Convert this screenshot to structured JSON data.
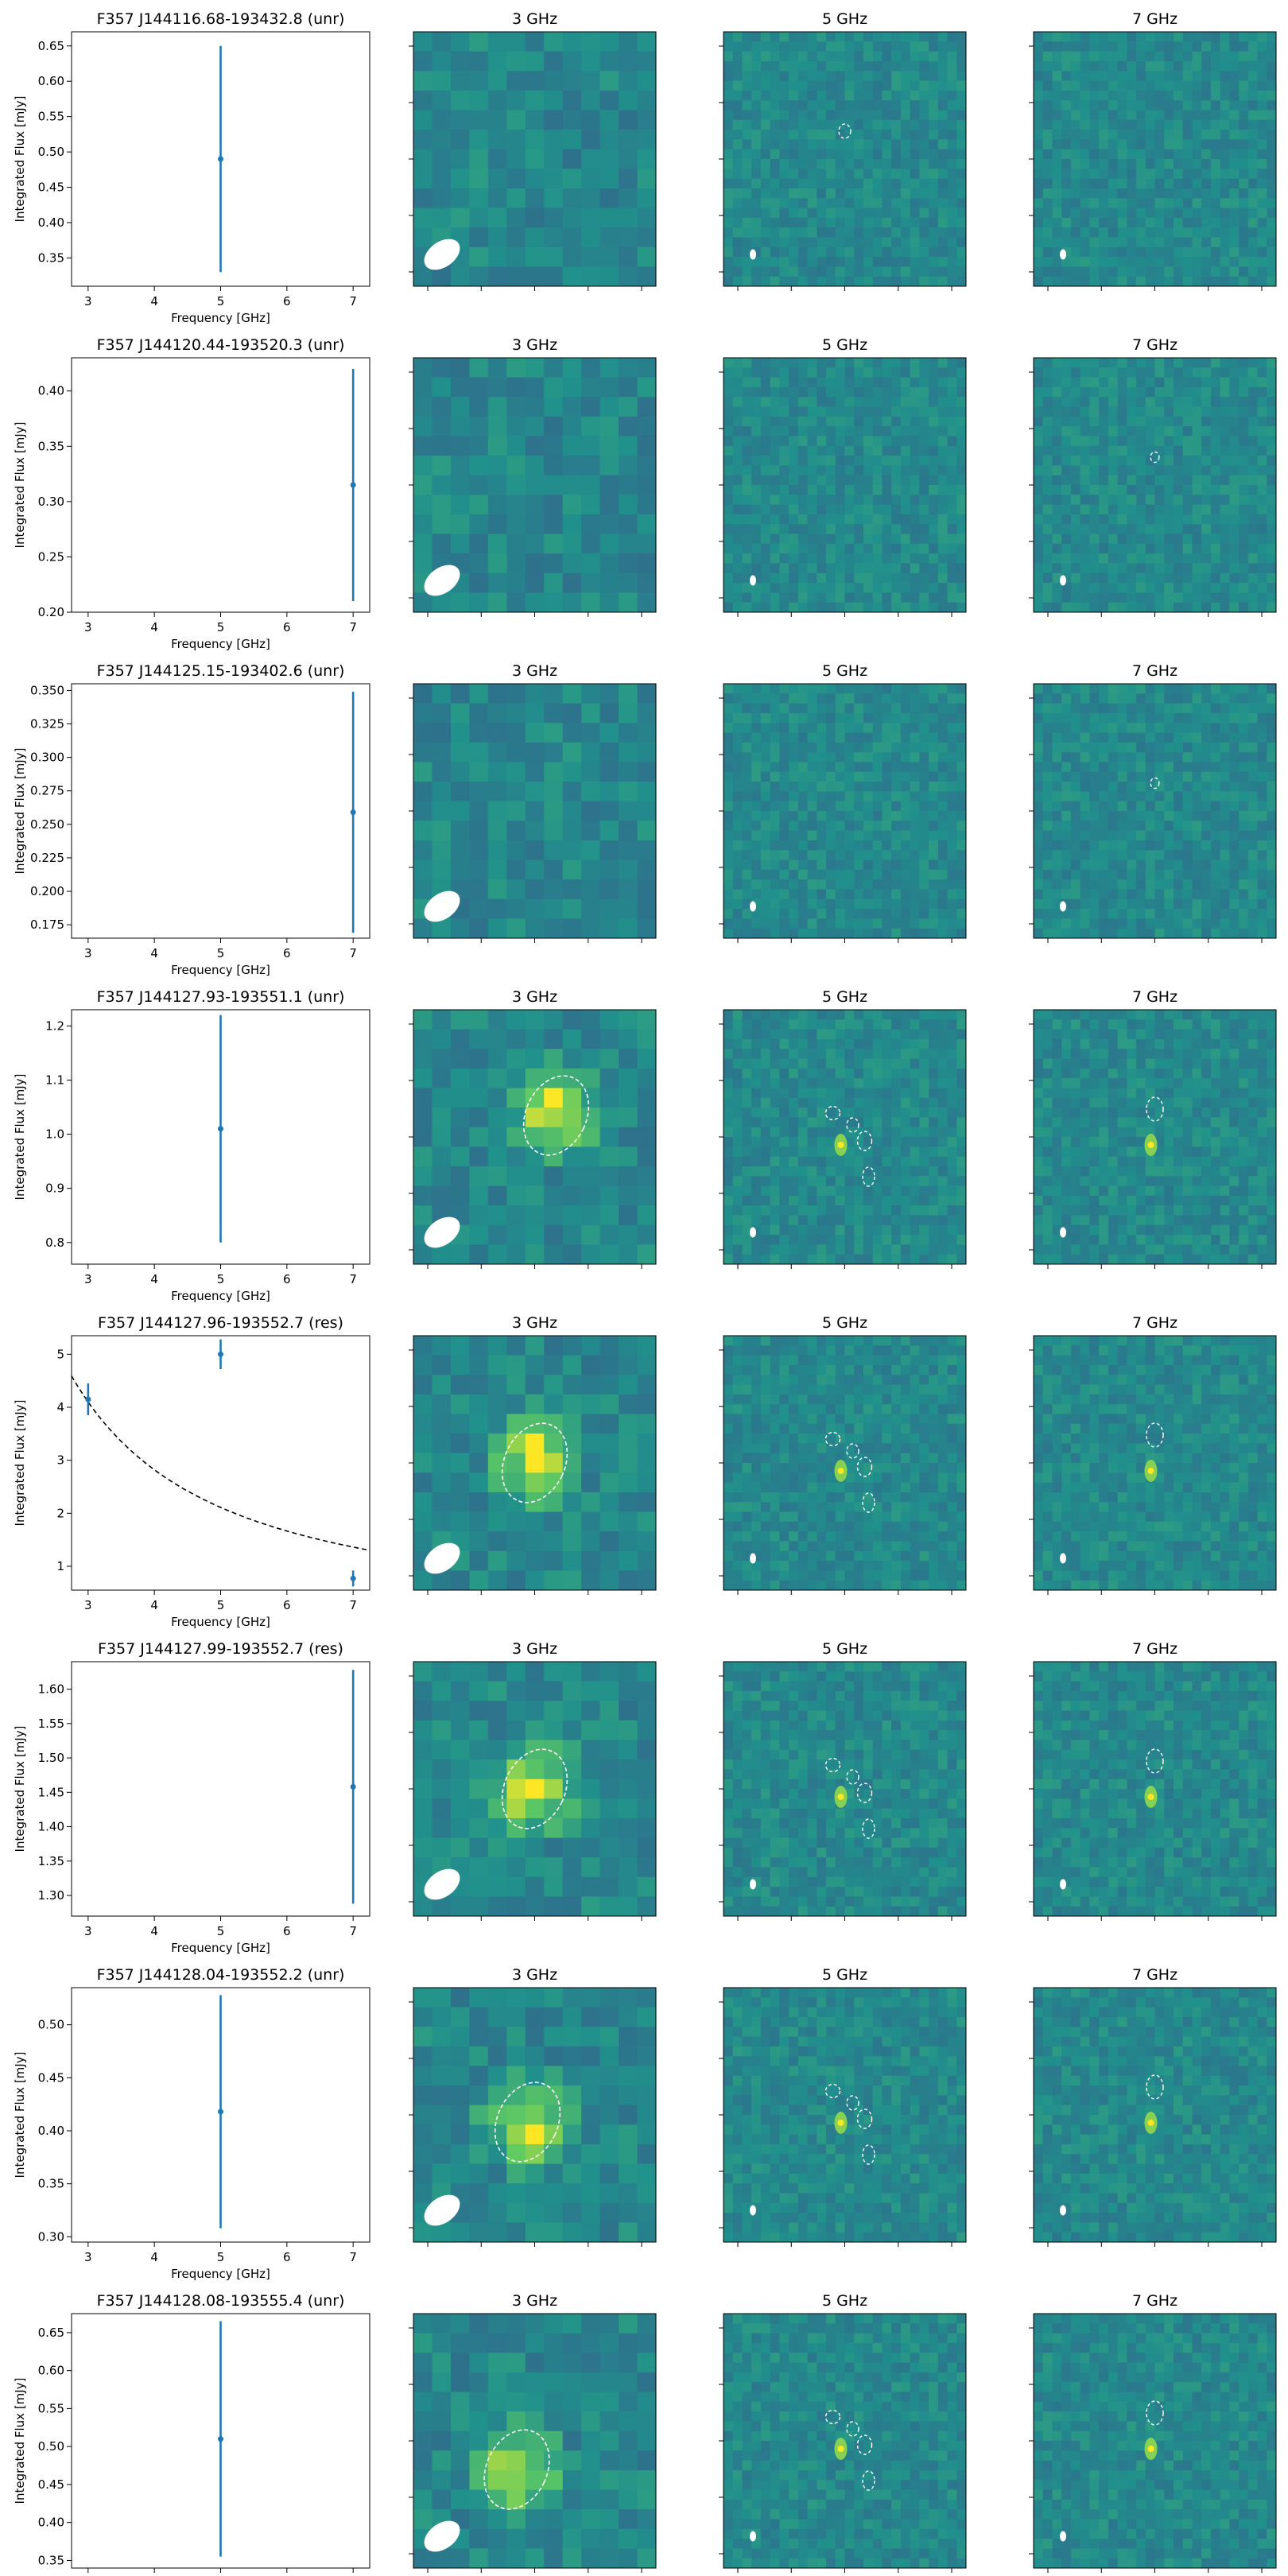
{
  "figure": {
    "panel_titles": [
      "3 GHz",
      "5 GHz",
      "7 GHz"
    ],
    "xlabel": "Frequency [GHz]",
    "ylabel": "Integrated Flux [mJy]"
  },
  "colors": {
    "series": "#1f77b4",
    "fit_line": "#000000",
    "image_low": "#3b528b",
    "image_mid": "#21918c",
    "image_high": "#5ec962",
    "image_peak": "#fde725",
    "contour": "#ffffff"
  },
  "chart_data": [
    {
      "type": "scatter",
      "title": "F357 J144116.68-193432.8 (unr)",
      "xlim": [
        2.75,
        7.25
      ],
      "xticks": [
        3,
        4,
        5,
        6,
        7
      ],
      "ylim": [
        0.31,
        0.67
      ],
      "yticks": [
        "0.35",
        "0.40",
        "0.45",
        "0.50",
        "0.55",
        "0.60",
        "0.65"
      ],
      "points": [
        {
          "x": 5,
          "y": 0.49,
          "err": 0.16
        }
      ],
      "fit": null,
      "image": {
        "source3": null,
        "contours5": [
          [
            5.1,
            -0.6,
            0.25,
            0.3
          ]
        ],
        "contours7": []
      }
    },
    {
      "type": "scatter",
      "title": "F357 J144120.44-193520.3 (unr)",
      "xlim": [
        2.75,
        7.25
      ],
      "xticks": [
        3,
        4,
        5,
        6,
        7
      ],
      "ylim": [
        0.2,
        0.43
      ],
      "yticks": [
        "0.20",
        "0.25",
        "0.30",
        "0.35",
        "0.40"
      ],
      "points": [
        {
          "x": 7,
          "y": 0.315,
          "err": 0.105
        }
      ],
      "fit": null,
      "image": {
        "source3": null,
        "contours5": [],
        "contours7": [
          [
            7.0,
            -0.6,
            0.18,
            0.22
          ]
        ]
      }
    },
    {
      "type": "scatter",
      "title": "F357 J144125.15-193402.6 (unr)",
      "xlim": [
        2.75,
        7.25
      ],
      "xticks": [
        3,
        4,
        5,
        6,
        7
      ],
      "ylim": [
        0.165,
        0.355
      ],
      "yticks": [
        "0.175",
        "0.200",
        "0.225",
        "0.250",
        "0.275",
        "0.300",
        "0.325",
        "0.350"
      ],
      "points": [
        {
          "x": 7,
          "y": 0.259,
          "err": 0.09
        }
      ],
      "fit": null,
      "image": {
        "source3": null,
        "contours5": [],
        "contours7": [
          [
            7.0,
            -0.6,
            0.18,
            0.22
          ]
        ]
      }
    },
    {
      "type": "scatter",
      "title": "F357 J144127.93-193551.1 (unr)",
      "xlim": [
        2.75,
        7.25
      ],
      "xticks": [
        3,
        4,
        5,
        6,
        7
      ],
      "ylim": [
        0.76,
        1.23
      ],
      "yticks": [
        "0.8",
        "0.9",
        "1.0",
        "1.1",
        "1.2"
      ],
      "points": [
        {
          "x": 5,
          "y": 1.01,
          "err": 0.21
        }
      ],
      "fit": null,
      "image": {
        "source3": [
          0.3,
          0.3
        ],
        "contours5": [
          [
            5.0,
            0.2,
            0.3,
            0.28
          ],
          [
            5.2,
            0.3,
            0.25,
            0.3
          ],
          [
            5.4,
            0.5,
            0.3,
            0.4
          ],
          [
            5.6,
            0.8,
            0.25,
            0.4
          ]
        ],
        "contours7": [
          [
            7.1,
            0.35,
            0.35,
            0.5
          ]
        ]
      }
    },
    {
      "type": "scatter",
      "title": "F357 J144127.96-193552.7 (res)",
      "xlim": [
        2.75,
        7.25
      ],
      "xticks": [
        3,
        4,
        5,
        6,
        7
      ],
      "ylim": [
        0.55,
        5.35
      ],
      "yticks": [
        "1",
        "2",
        "3",
        "4",
        "5"
      ],
      "points": [
        {
          "x": 3,
          "y": 4.15,
          "err": 0.3
        },
        {
          "x": 5,
          "y": 5.0,
          "err": 0.28
        },
        {
          "x": 7,
          "y": 0.77,
          "err": 0.15
        }
      ],
      "fit": {
        "amp": 4.1,
        "ref": 3.0,
        "index": -1.3,
        "xrange": [
          2.75,
          7.25
        ]
      },
      "image": {
        "source3": [
          0.0,
          0.0
        ],
        "contours5": [
          [
            5.0,
            0.2,
            0.3,
            0.28
          ],
          [
            5.2,
            0.3,
            0.25,
            0.3
          ],
          [
            5.4,
            0.5,
            0.3,
            0.4
          ],
          [
            5.6,
            0.8,
            0.25,
            0.4
          ]
        ],
        "contours7": [
          [
            7.1,
            0.35,
            0.35,
            0.5
          ]
        ]
      }
    },
    {
      "type": "scatter",
      "title": "F357 J144127.99-193552.7 (res)",
      "xlim": [
        2.75,
        7.25
      ],
      "xticks": [
        3,
        4,
        5,
        6,
        7
      ],
      "ylim": [
        1.27,
        1.64
      ],
      "yticks": [
        "1.30",
        "1.35",
        "1.40",
        "1.45",
        "1.50",
        "1.55",
        "1.60"
      ],
      "points": [
        {
          "x": 7,
          "y": 1.458,
          "err": 0.17
        }
      ],
      "fit": null,
      "image": {
        "source3": [
          0.0,
          0.0
        ],
        "contours5": [
          [
            5.0,
            0.2,
            0.3,
            0.28
          ],
          [
            5.2,
            0.3,
            0.25,
            0.3
          ],
          [
            5.4,
            0.5,
            0.3,
            0.4
          ],
          [
            5.6,
            0.8,
            0.25,
            0.4
          ]
        ],
        "contours7": [
          [
            7.1,
            0.35,
            0.35,
            0.5
          ]
        ]
      }
    },
    {
      "type": "scatter",
      "title": "F357 J144128.04-193552.2 (unr)",
      "xlim": [
        2.75,
        7.25
      ],
      "xticks": [
        3,
        4,
        5,
        6,
        7
      ],
      "ylim": [
        0.295,
        0.535
      ],
      "yticks": [
        "0.30",
        "0.35",
        "0.40",
        "0.45",
        "0.50"
      ],
      "points": [
        {
          "x": 5,
          "y": 0.418,
          "err": 0.11
        }
      ],
      "fit": null,
      "image": {
        "source3": [
          -0.1,
          -0.1
        ],
        "contours5": [
          [
            5.0,
            0.2,
            0.3,
            0.28
          ],
          [
            5.2,
            0.3,
            0.25,
            0.3
          ],
          [
            5.4,
            0.5,
            0.3,
            0.4
          ],
          [
            5.6,
            0.8,
            0.25,
            0.4
          ]
        ],
        "contours7": [
          [
            7.1,
            0.35,
            0.35,
            0.5
          ]
        ]
      }
    },
    {
      "type": "scatter",
      "title": "F357 J144128.08-193555.4 (unr)",
      "xlim": [
        2.75,
        7.25
      ],
      "xticks": [
        3,
        4,
        5,
        6,
        7
      ],
      "ylim": [
        0.34,
        0.675
      ],
      "yticks": [
        "0.35",
        "0.40",
        "0.45",
        "0.50",
        "0.55",
        "0.60",
        "0.65"
      ],
      "points": [
        {
          "x": 5,
          "y": 0.51,
          "err": 0.155
        }
      ],
      "fit": null,
      "image": {
        "source3": [
          -0.25,
          -0.4
        ],
        "contours5": [
          [
            5.0,
            0.2,
            0.3,
            0.28
          ],
          [
            5.2,
            0.3,
            0.25,
            0.3
          ],
          [
            5.4,
            0.5,
            0.3,
            0.4
          ],
          [
            5.6,
            0.8,
            0.25,
            0.4
          ]
        ],
        "contours7": [
          [
            7.1,
            0.35,
            0.35,
            0.5
          ]
        ]
      }
    }
  ]
}
